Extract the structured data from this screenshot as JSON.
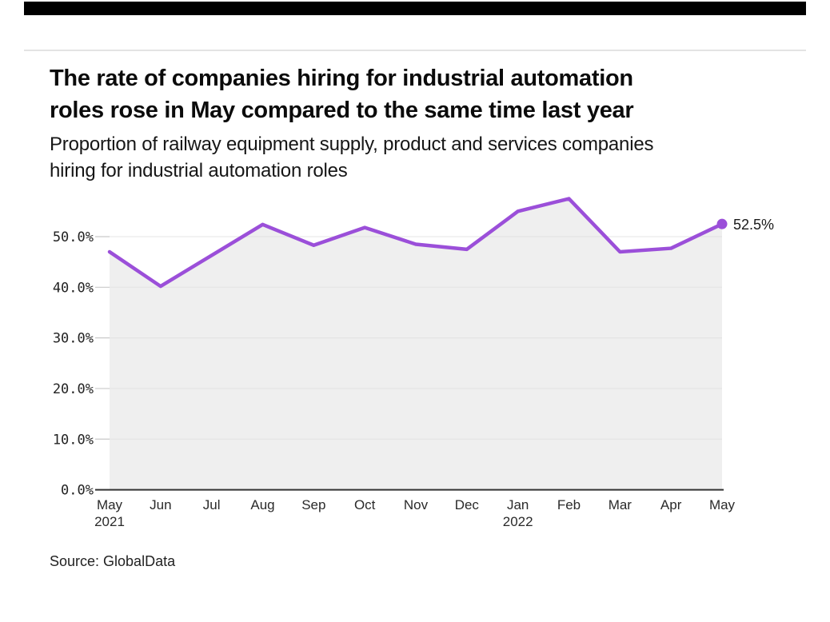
{
  "page": {
    "top_bar_color": "#000000",
    "background": "#ffffff"
  },
  "header": {
    "title_lines": [
      "The rate of companies hiring for industrial automation",
      "roles rose in May compared to the same time last year"
    ],
    "subtitle_lines": [
      "Proportion of railway equipment supply, product and services companies",
      "hiring for industrial automation roles"
    ]
  },
  "footer": {
    "source": "Source: GlobalData"
  },
  "chart_data": {
    "type": "area",
    "title": "Proportion of railway equipment supply, product and services companies hiring for industrial automation roles",
    "categories": [
      {
        "label": "May",
        "year": "2021"
      },
      {
        "label": "Jun"
      },
      {
        "label": "Jul"
      },
      {
        "label": "Aug"
      },
      {
        "label": "Sep"
      },
      {
        "label": "Oct"
      },
      {
        "label": "Nov"
      },
      {
        "label": "Dec"
      },
      {
        "label": "Jan",
        "year": "2022"
      },
      {
        "label": "Feb"
      },
      {
        "label": "Mar"
      },
      {
        "label": "Apr"
      },
      {
        "label": "May"
      }
    ],
    "values": [
      47.0,
      40.2,
      46.3,
      52.4,
      48.3,
      51.8,
      48.5,
      47.5,
      55.0,
      57.5,
      47.0,
      47.7,
      52.5
    ],
    "unit": "%",
    "ytick_labels": [
      "0.0%",
      "10.0%",
      "20.0%",
      "30.0%",
      "40.0%",
      "50.0%"
    ],
    "ytick_values": [
      0,
      10,
      20,
      30,
      40,
      50
    ],
    "ylim": [
      0,
      60
    ],
    "end_label": "52.5%",
    "grid": "horizontal",
    "legend": "none",
    "line_color": "#9b4fd9",
    "area_color": "#efefef",
    "grid_color": "#dedede",
    "axis_color": "#333333",
    "tick_color": "#c9c9c9"
  }
}
